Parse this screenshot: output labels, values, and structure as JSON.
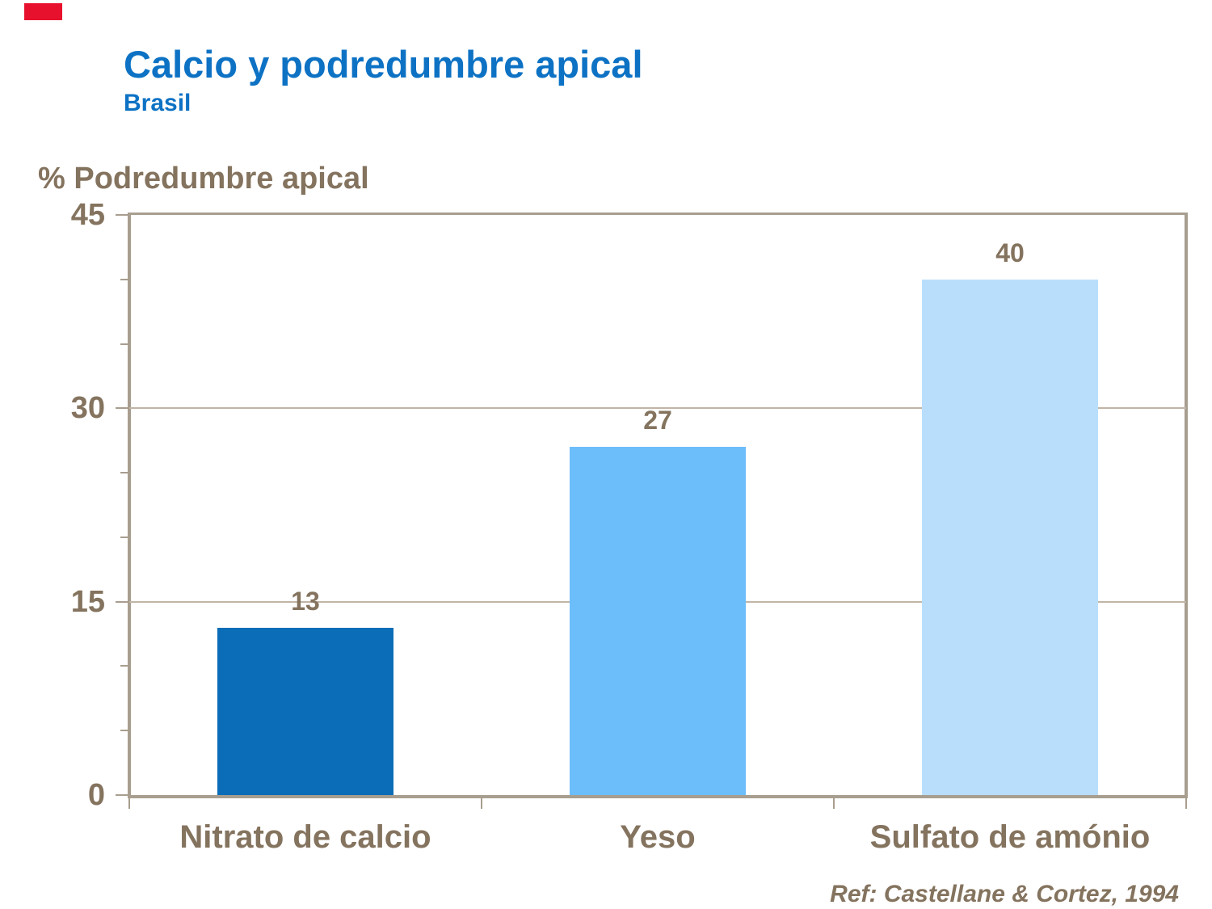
{
  "header": {
    "title": "Calcio y podredumbre apical",
    "subtitle": "Brasil",
    "title_color": "#0D72C4",
    "logo_color": "#E8112D"
  },
  "chart_data": {
    "type": "bar",
    "categories": [
      "Nitrato de calcio",
      "Yeso",
      "Sulfato de amónio"
    ],
    "values": [
      13,
      27,
      40
    ],
    "data_labels": [
      "13",
      "27",
      "40"
    ],
    "bar_colors": [
      "#0B6DB7",
      "#6CBEFB",
      "#B9DEFC"
    ],
    "ylabel": "% Podredumbre apical",
    "xlabel": "",
    "ylim": [
      0,
      45
    ],
    "yticks": [
      0,
      15,
      30,
      45
    ],
    "ytick_labels": [
      "0",
      "15",
      "30",
      "45"
    ],
    "y_minor_unit": 5,
    "grid": true,
    "legend": false,
    "text_color": "#84735E",
    "axis_color": "#A89E8F",
    "gridline_color": "#C0B5A5",
    "background": "#FFFFFF"
  },
  "footer": {
    "reference": "Ref: Castellane & Cortez, 1994"
  }
}
